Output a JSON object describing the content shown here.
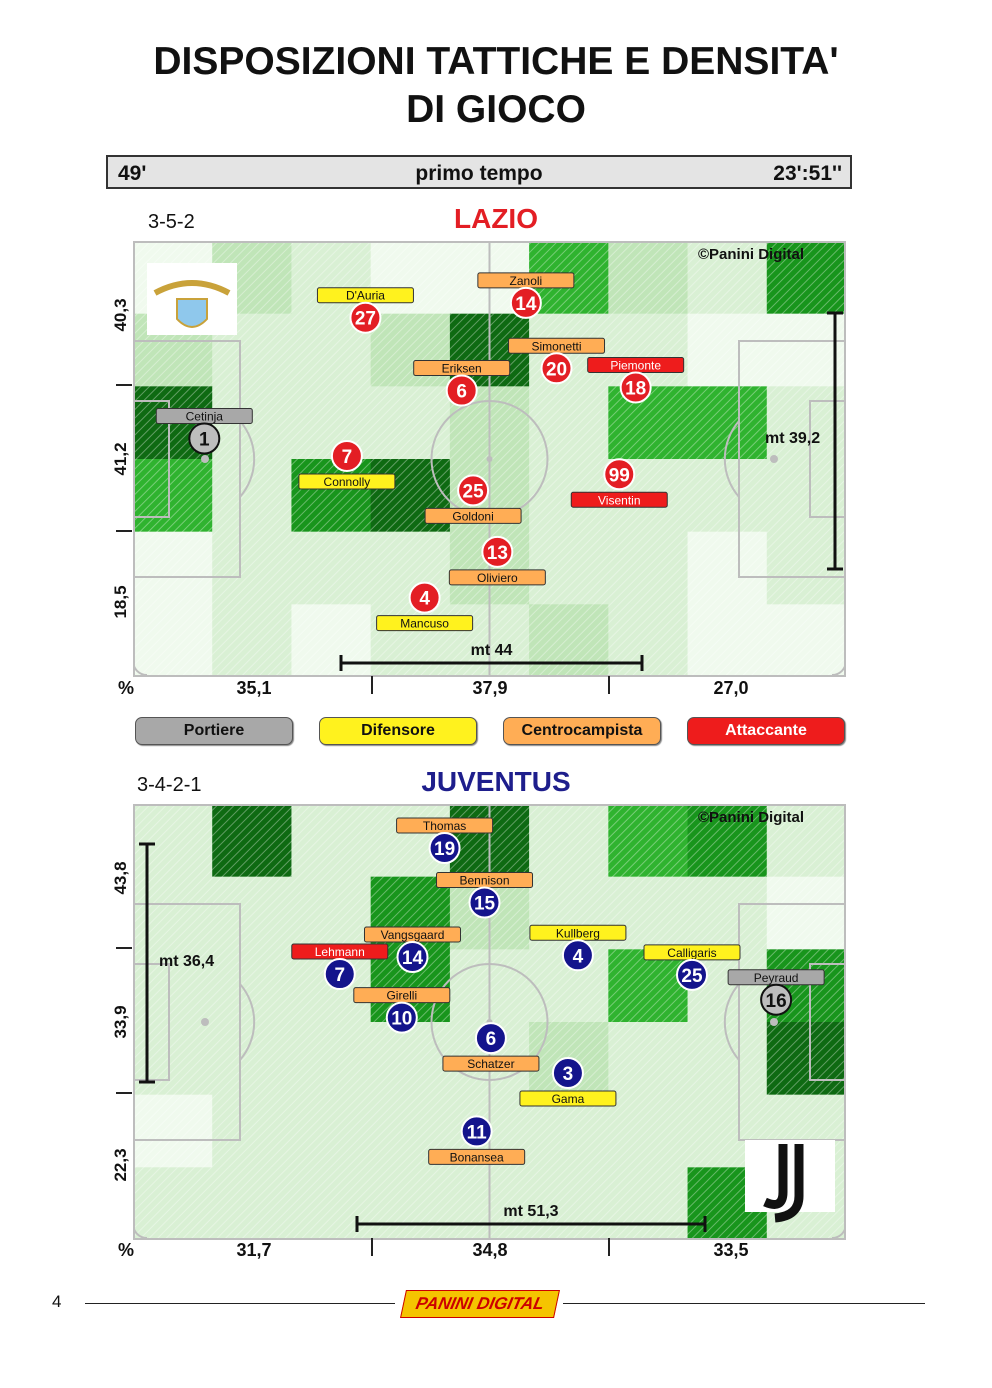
{
  "title": {
    "line1": "DISPOSIZIONI TATTICHE E DENSITA'",
    "line2": "DI GIOCO"
  },
  "infobar": {
    "minute": "49'",
    "half": "primo tempo",
    "time": "23':51''"
  },
  "legend": {
    "portiere": "Portiere",
    "difensore": "Difensore",
    "centrocampista": "Centrocampista",
    "attaccante": "Attaccante"
  },
  "colors": {
    "portiere": "#a8a8a8",
    "difensore": "#fff21e",
    "centrocampista": "#ffad55",
    "attaccante": "#ee1c1c",
    "lazio_title": "#e31e24",
    "juve_title": "#1e1e8c",
    "lazio_circle": "#e31e24",
    "juve_circle": "#14148c"
  },
  "footer": {
    "page": "4",
    "logo": "PANINI DIGITAL"
  },
  "chart_data": [
    {
      "type": "heatmap",
      "team": "LAZIO",
      "formation": "3-5-2",
      "credit": "©Panini Digital",
      "left_zone_labels": [
        "40,3",
        "41,2",
        "18,5"
      ],
      "bottom_percent_label": "%",
      "third_percentages": [
        "35,1",
        "37,9",
        "27,0"
      ],
      "width_measure": "mt 44",
      "depth_measure": "mt 39,2",
      "density_grid": [
        [
          0,
          2,
          1,
          0,
          0,
          4,
          2,
          1,
          5
        ],
        [
          2,
          1,
          1,
          2,
          6,
          1,
          1,
          0,
          0
        ],
        [
          6,
          1,
          1,
          1,
          2,
          1,
          4,
          4,
          1
        ],
        [
          4,
          1,
          5,
          6,
          2,
          1,
          1,
          1,
          1
        ],
        [
          0,
          1,
          1,
          1,
          2,
          1,
          1,
          0,
          1
        ],
        [
          0,
          1,
          0,
          1,
          1,
          2,
          1,
          0,
          0
        ]
      ],
      "players": [
        {
          "number": "1",
          "name": "Cetinja",
          "role": "portiere",
          "x": 0.1,
          "y": 0.453,
          "label_above": true
        },
        {
          "number": "27",
          "name": "D'Auria",
          "role": "difensore",
          "x": 0.326,
          "y": 0.176,
          "label_above": true
        },
        {
          "number": "14",
          "name": "Zanoli",
          "role": "centrocampista",
          "x": 0.551,
          "y": 0.142,
          "label_above": true
        },
        {
          "number": "20",
          "name": "Simonetti",
          "role": "centrocampista",
          "x": 0.594,
          "y": 0.292,
          "label_above": true
        },
        {
          "number": "6",
          "name": "Eriksen",
          "role": "centrocampista",
          "x": 0.461,
          "y": 0.343,
          "label_above": true
        },
        {
          "number": "18",
          "name": "Piemonte",
          "role": "attaccante",
          "x": 0.705,
          "y": 0.336,
          "label_above": true
        },
        {
          "number": "7",
          "name": "Connolly",
          "role": "difensore",
          "x": 0.3,
          "y": 0.493,
          "label_above": false
        },
        {
          "number": "99",
          "name": "Visentin",
          "role": "attaccante",
          "x": 0.682,
          "y": 0.535,
          "label_above": false
        },
        {
          "number": "25",
          "name": "Goldoni",
          "role": "centrocampista",
          "x": 0.477,
          "y": 0.572,
          "label_above": false
        },
        {
          "number": "13",
          "name": "Oliviero",
          "role": "centrocampista",
          "x": 0.511,
          "y": 0.713,
          "label_above": false
        },
        {
          "number": "4",
          "name": "Mancuso",
          "role": "difensore",
          "x": 0.409,
          "y": 0.818,
          "label_above": false
        }
      ]
    },
    {
      "type": "heatmap",
      "team": "JUVENTUS",
      "formation": "3-4-2-1",
      "credit": "©Panini Digital",
      "left_zone_labels": [
        "43,8",
        "33,9",
        "22,3"
      ],
      "bottom_percent_label": "%",
      "third_percentages": [
        "31,7",
        "34,8",
        "33,5"
      ],
      "width_measure": "mt 51,3",
      "depth_measure": "mt 36,4",
      "density_grid": [
        [
          1,
          6,
          1,
          1,
          6,
          1,
          4,
          5,
          1
        ],
        [
          1,
          1,
          1,
          5,
          2,
          1,
          1,
          1,
          0
        ],
        [
          1,
          1,
          1,
          5,
          1,
          1,
          4,
          1,
          5
        ],
        [
          1,
          1,
          1,
          1,
          1,
          2,
          1,
          1,
          6
        ],
        [
          0,
          1,
          1,
          1,
          1,
          1,
          1,
          1,
          1
        ],
        [
          1,
          1,
          1,
          1,
          1,
          1,
          1,
          5,
          1
        ]
      ],
      "players": [
        {
          "number": "19",
          "name": "Thomas",
          "role": "centrocampista",
          "x": 0.437,
          "y": 0.101,
          "label_above": true
        },
        {
          "number": "15",
          "name": "Bennison",
          "role": "centrocampista",
          "x": 0.493,
          "y": 0.226,
          "label_above": true
        },
        {
          "number": "14",
          "name": "Vangsgaard",
          "role": "centrocampista",
          "x": 0.392,
          "y": 0.351,
          "label_above": true
        },
        {
          "number": "4",
          "name": "Kullberg",
          "role": "difensore",
          "x": 0.624,
          "y": 0.347,
          "label_above": true
        },
        {
          "number": "25",
          "name": "Calligaris",
          "role": "difensore",
          "x": 0.784,
          "y": 0.392,
          "label_above": true
        },
        {
          "number": "7",
          "name": "Lehmann",
          "role": "attaccante",
          "x": 0.29,
          "y": 0.39,
          "label_above": true
        },
        {
          "number": "16",
          "name": "Peyraud",
          "role": "portiere",
          "x": 0.902,
          "y": 0.449,
          "label_above": true
        },
        {
          "number": "10",
          "name": "Girelli",
          "role": "centrocampista",
          "x": 0.377,
          "y": 0.49,
          "label_above": true
        },
        {
          "number": "6",
          "name": "Schatzer",
          "role": "centrocampista",
          "x": 0.502,
          "y": 0.537,
          "label_above": false
        },
        {
          "number": "3",
          "name": "Gama",
          "role": "difensore",
          "x": 0.61,
          "y": 0.617,
          "label_above": false
        },
        {
          "number": "11",
          "name": "Bonansea",
          "role": "centrocampista",
          "x": 0.482,
          "y": 0.751,
          "label_above": false
        }
      ]
    }
  ]
}
